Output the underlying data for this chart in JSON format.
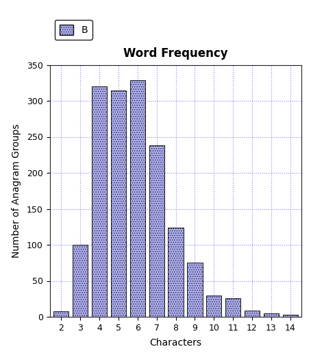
{
  "title": "Word Frequency",
  "xlabel": "Characters",
  "ylabel": "Number of Anagram Groups",
  "categories": [
    2,
    3,
    4,
    5,
    6,
    7,
    8,
    9,
    10,
    11,
    12,
    13,
    14
  ],
  "values": [
    8,
    100,
    320,
    314,
    329,
    238,
    124,
    75,
    30,
    26,
    9,
    5,
    3
  ],
  "bar_color": "#4444cc",
  "bar_hatch": ".....",
  "bar_facecolor": "#aaaaee",
  "bar_edgecolor": "#111111",
  "ylim": [
    0,
    350
  ],
  "yticks": [
    0,
    50,
    100,
    150,
    200,
    250,
    300,
    350
  ],
  "legend_label": "B",
  "background_color": "#ffffff",
  "grid_color": "#3333ff",
  "title_fontsize": 12,
  "axis_fontsize": 10,
  "tick_fontsize": 9,
  "legend_fontsize": 10
}
